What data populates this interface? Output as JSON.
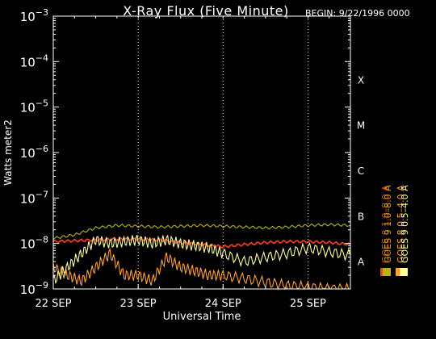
{
  "chart_data": {
    "type": "line",
    "title": "X-Ray Flux (Five Minute)",
    "begin_label": "BEGIN: 9/22/1996 0000",
    "xlabel": "Universal Time",
    "ylabel": "Watts meter2",
    "x_ticks": [
      "22 SEP",
      "23 SEP",
      "24 SEP",
      "25 SEP"
    ],
    "xlim": [
      "1996-09-22 00:00",
      "1996-09-25 12:00"
    ],
    "y_scale": "log",
    "ylim": [
      1e-09,
      0.001
    ],
    "y_ticks": [
      {
        "value": 1e-09,
        "base": "10",
        "exp": "−9"
      },
      {
        "value": 1e-08,
        "base": "10",
        "exp": "−8"
      },
      {
        "value": 1e-07,
        "base": "10",
        "exp": "−7"
      },
      {
        "value": 1e-06,
        "base": "10",
        "exp": "−6"
      },
      {
        "value": 1e-05,
        "base": "10",
        "exp": "−5"
      },
      {
        "value": 0.0001,
        "base": "10",
        "exp": "−4"
      },
      {
        "value": 0.001,
        "base": "10",
        "exp": "−3"
      }
    ],
    "flare_classes": [
      {
        "label": "A",
        "value": 1e-08
      },
      {
        "label": "B",
        "value": 1e-07
      },
      {
        "label": "C",
        "value": 1e-06
      },
      {
        "label": "M",
        "value": 1e-05
      },
      {
        "label": "X",
        "value": 0.0001
      }
    ],
    "grid": "dotted vertical lines at day boundaries",
    "legend_placement": "right, vertical",
    "series": [
      {
        "name": "GOES 8 1.0–8.0 A",
        "color": "#ff3d1a",
        "x": [
          "1996-09-22 00:00",
          "1996-09-22 06:00",
          "1996-09-22 12:00",
          "1996-09-22 18:00",
          "1996-09-23 00:00",
          "1996-09-23 06:00",
          "1996-09-23 12:00",
          "1996-09-23 18:00",
          "1996-09-24 00:00",
          "1996-09-24 06:00",
          "1996-09-24 12:00",
          "1996-09-24 18:00",
          "1996-09-25 00:00",
          "1996-09-25 06:00",
          "1996-09-25 12:00"
        ],
        "y": [
          1.1e-08,
          1.15e-08,
          1.2e-08,
          1.25e-08,
          1.25e-08,
          1.2e-08,
          1.05e-08,
          9.5e-09,
          8.5e-09,
          9.5e-09,
          1.05e-08,
          1.1e-08,
          1.1e-08,
          1.05e-08,
          9.5e-09
        ]
      },
      {
        "name": "GOES 8 0.5–4.0 A",
        "color": "#ffa033",
        "x": [
          "1996-09-22 00:00",
          "1996-09-22 04:00",
          "1996-09-22 08:00",
          "1996-09-22 12:00",
          "1996-09-22 16:00",
          "1996-09-22 20:00",
          "1996-09-23 00:00",
          "1996-09-23 04:00",
          "1996-09-23 08:00",
          "1996-09-23 12:00",
          "1996-09-23 16:00",
          "1996-09-23 20:00",
          "1996-09-24 00:00",
          "1996-09-24 06:00",
          "1996-09-24 12:00",
          "1996-09-24 18:00",
          "1996-09-25 00:00",
          "1996-09-25 06:00",
          "1996-09-25 12:00"
        ],
        "y": [
          3e-09,
          2e-09,
          1.5e-09,
          3e-09,
          6e-09,
          2e-09,
          2e-09,
          1.5e-09,
          5e-09,
          3e-09,
          2.5e-09,
          2e-09,
          2e-09,
          1.7e-09,
          1.4e-09,
          1.2e-09,
          1.1e-09,
          1e-09,
          1e-09
        ]
      },
      {
        "name": "GOES 9 1.0–8.0 A",
        "color": "#b8b21a",
        "x": [
          "1996-09-22 00:00",
          "1996-09-22 06:00",
          "1996-09-22 12:00",
          "1996-09-22 18:00",
          "1996-09-23 00:00",
          "1996-09-23 06:00",
          "1996-09-23 12:00",
          "1996-09-23 18:00",
          "1996-09-24 00:00",
          "1996-09-24 06:00",
          "1996-09-24 12:00",
          "1996-09-24 18:00",
          "1996-09-25 00:00",
          "1996-09-25 06:00",
          "1996-09-25 12:00"
        ],
        "y": [
          1.3e-08,
          1.55e-08,
          2.2e-08,
          2.5e-08,
          2.4e-08,
          2.3e-08,
          2.4e-08,
          2.5e-08,
          2.4e-08,
          2.3e-08,
          2.2e-08,
          2.3e-08,
          2.5e-08,
          2.6e-08,
          2.5e-08
        ]
      },
      {
        "name": "GOES 9 0.5–4.0 A",
        "color": "#ffff99",
        "x": [
          "1996-09-22 00:00",
          "1996-09-22 04:00",
          "1996-09-22 08:00",
          "1996-09-22 12:00",
          "1996-09-22 16:00",
          "1996-09-22 20:00",
          "1996-09-23 00:00",
          "1996-09-23 04:00",
          "1996-09-23 08:00",
          "1996-09-23 12:00",
          "1996-09-23 16:00",
          "1996-09-23 20:00",
          "1996-09-24 00:00",
          "1996-09-24 06:00",
          "1996-09-24 12:00",
          "1996-09-24 18:00",
          "1996-09-25 00:00",
          "1996-09-25 06:00",
          "1996-09-25 12:00"
        ],
        "y": [
          1.5e-09,
          3e-09,
          6e-09,
          1.2e-08,
          1e-08,
          1.1e-08,
          1.2e-08,
          1e-08,
          1.2e-08,
          1e-08,
          9e-09,
          8e-09,
          6e-09,
          4e-09,
          5e-09,
          6e-09,
          8e-09,
          6.5e-09,
          5.5e-09
        ]
      }
    ]
  }
}
